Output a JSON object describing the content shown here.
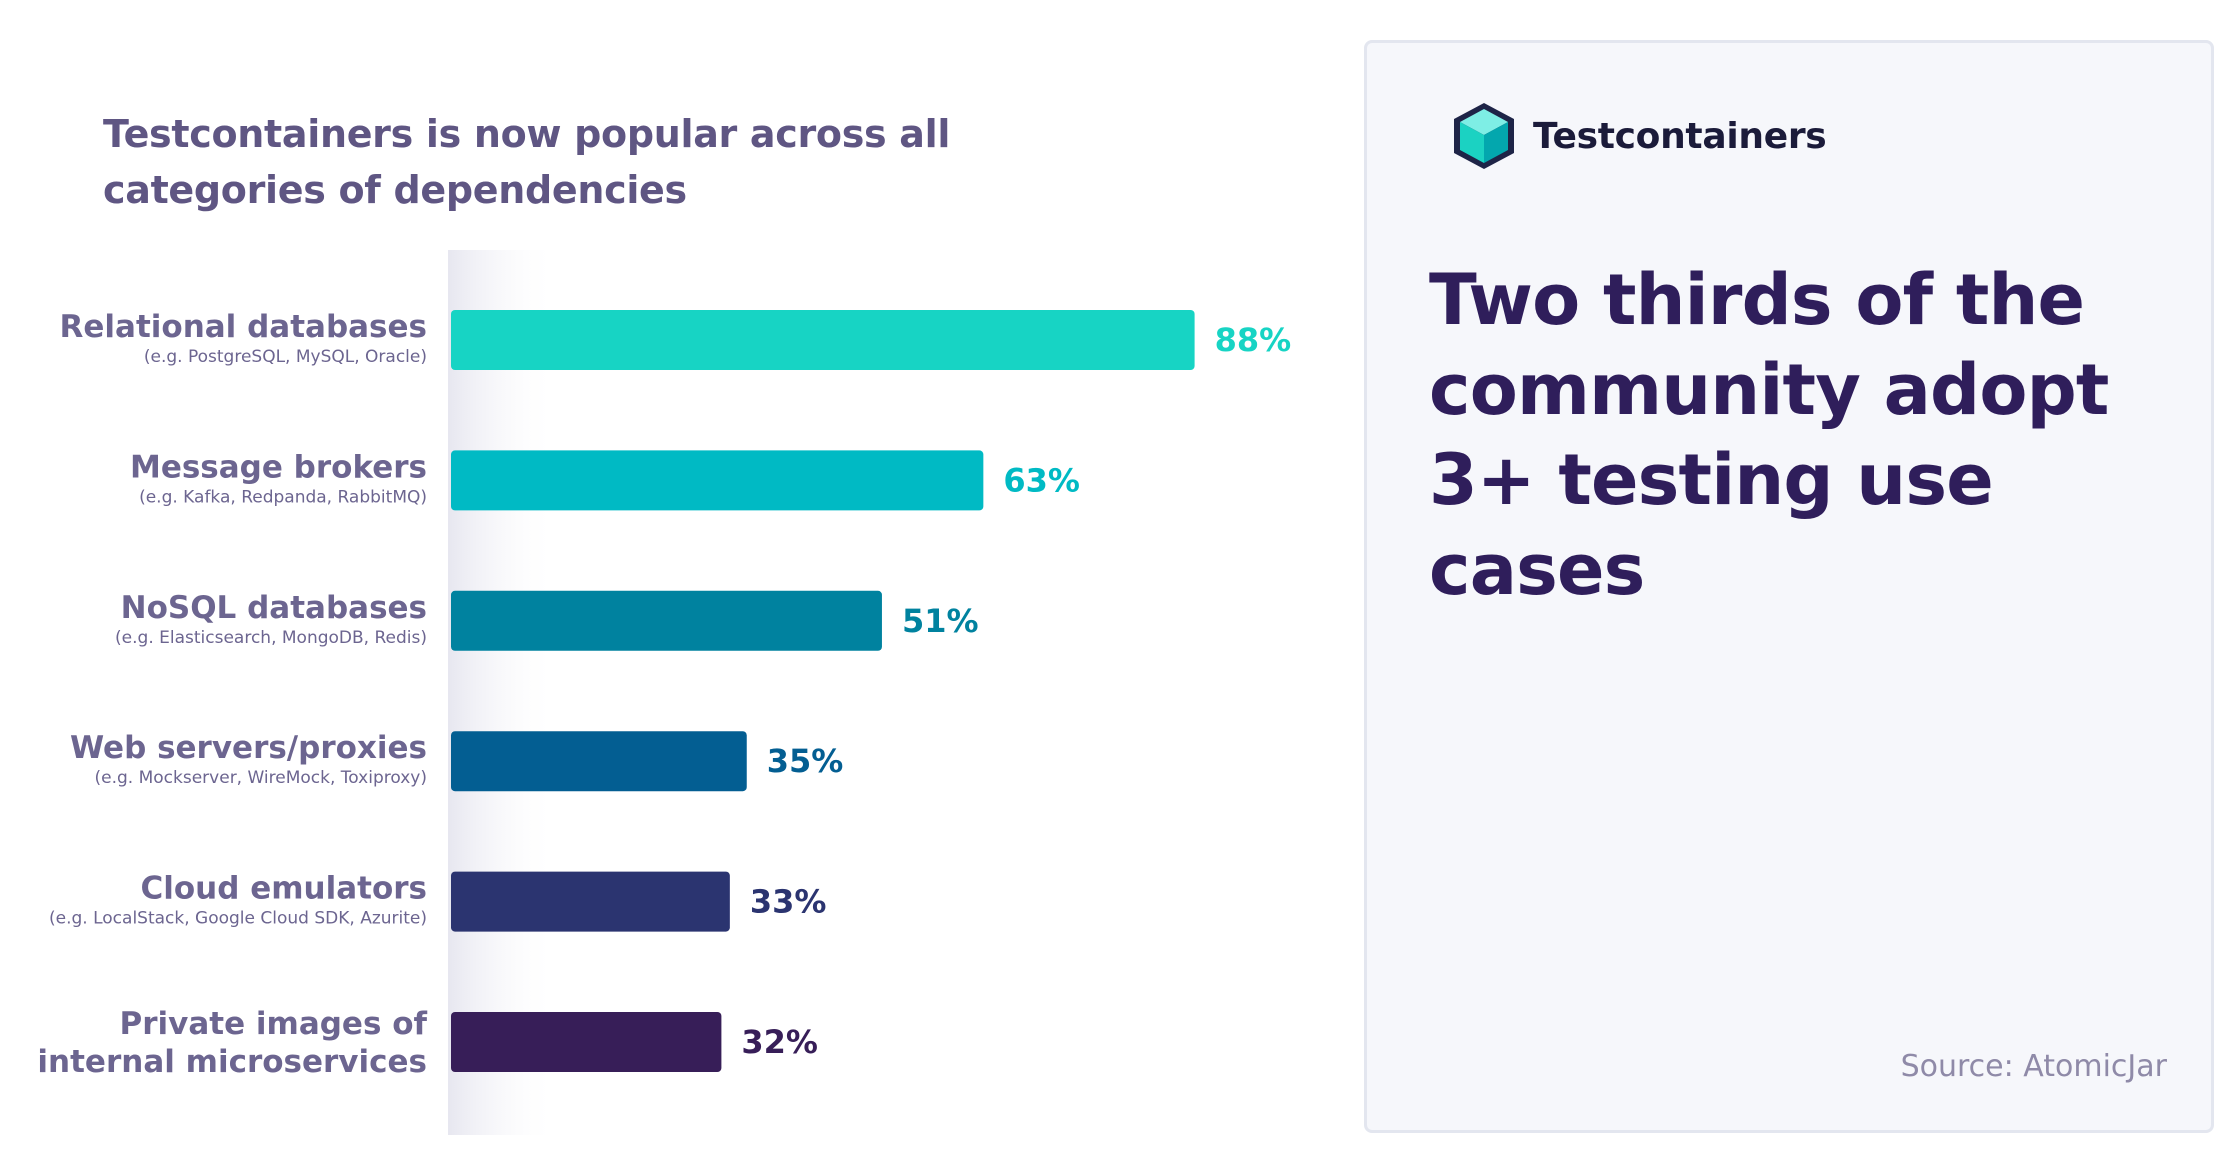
{
  "chart_data": {
    "type": "bar",
    "orientation": "horizontal",
    "title": "Testcontainers is now popular across all categories of dependencies",
    "categories": [
      "Relational databases",
      "Message brokers",
      "NoSQL databases",
      "Web servers/proxies",
      "Cloud emulators",
      "Private images of internal microservices"
    ],
    "category_lines": [
      [
        "Relational databases"
      ],
      [
        "Message brokers"
      ],
      [
        "NoSQL databases"
      ],
      [
        "Web servers/proxies"
      ],
      [
        "Cloud emulators"
      ],
      [
        "Private images of",
        "internal microservices"
      ]
    ],
    "subtitles": [
      "(e.g. PostgreSQL, MySQL, Oracle)",
      "(e.g. Kafka, Redpanda, RabbitMQ)",
      "(e.g. Elasticsearch, MongoDB, Redis)",
      "(e.g. Mockserver, WireMock, Toxiproxy)",
      "(e.g. LocalStack, Google Cloud SDK, Azurite)",
      ""
    ],
    "values": [
      88,
      63,
      51,
      35,
      33,
      32
    ],
    "value_labels": [
      "88%",
      "63%",
      "51%",
      "35%",
      "33%",
      "32%"
    ],
    "colors": [
      "#17d4c4",
      "#00bac4",
      "#00829f",
      "#035e92",
      "#2b3470",
      "#371e58"
    ],
    "xlim": [
      0,
      100
    ],
    "xlabel": "",
    "ylabel": "",
    "grid": false,
    "legend": "none"
  },
  "panel": {
    "brand": "Testcontainers",
    "brand_icon": "testcontainers-cube-icon",
    "headline": "Two thirds of the community adopt 3+ testing use cases",
    "source": "Source: AtomicJar"
  }
}
